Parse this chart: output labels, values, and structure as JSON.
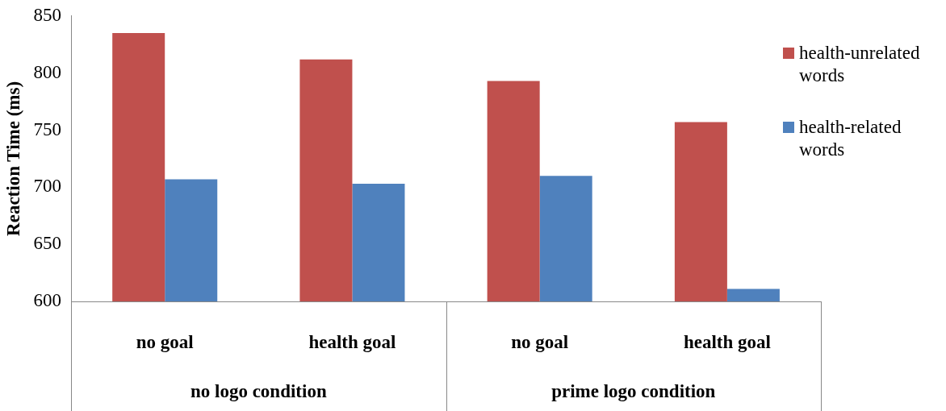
{
  "chart_data": {
    "type": "bar",
    "ylabel": "Reaction Time (ms)",
    "categories": [
      "no goal",
      "health goal",
      "no goal",
      "health goal"
    ],
    "series": [
      {
        "name": "health-unrelated words",
        "color": "#c0504d",
        "values": [
          835,
          812,
          793,
          757
        ]
      },
      {
        "name": "health-related words",
        "color": "#4f81bd",
        "values": [
          707,
          703,
          710,
          611
        ]
      }
    ],
    "ylim": [
      600,
      850
    ],
    "yticks": [
      600,
      650,
      700,
      750,
      800,
      850
    ],
    "grid": false,
    "legend": "right",
    "annotations": [
      "no logo condition",
      "prime logo condition"
    ]
  }
}
